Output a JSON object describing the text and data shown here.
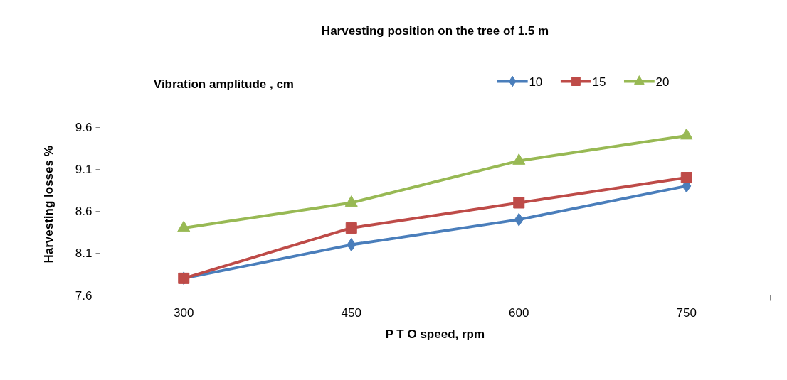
{
  "chart_data": {
    "type": "line",
    "title": "Harvesting position on the tree of 1.5 m",
    "legend_title": "Vibration amplitude , cm",
    "xlabel": "P T O speed, rpm",
    "ylabel": "Harvesting losses  %",
    "categories": [
      "300",
      "450",
      "600",
      "750"
    ],
    "series": [
      {
        "name": "10",
        "color": "#4a7ebb",
        "marker": "diamond",
        "values": [
          7.8,
          8.2,
          8.5,
          8.9
        ]
      },
      {
        "name": "15",
        "color": "#be4b48",
        "marker": "square",
        "values": [
          7.8,
          8.4,
          8.7,
          9.0
        ]
      },
      {
        "name": "20",
        "color": "#98b954",
        "marker": "triangle",
        "values": [
          8.4,
          8.7,
          9.2,
          9.5
        ]
      }
    ],
    "ylim": [
      7.6,
      9.8
    ],
    "yticks": [
      7.6,
      8.1,
      8.6,
      9.1,
      9.6
    ],
    "grid": false,
    "legend": "top right",
    "line_style": "solid"
  }
}
